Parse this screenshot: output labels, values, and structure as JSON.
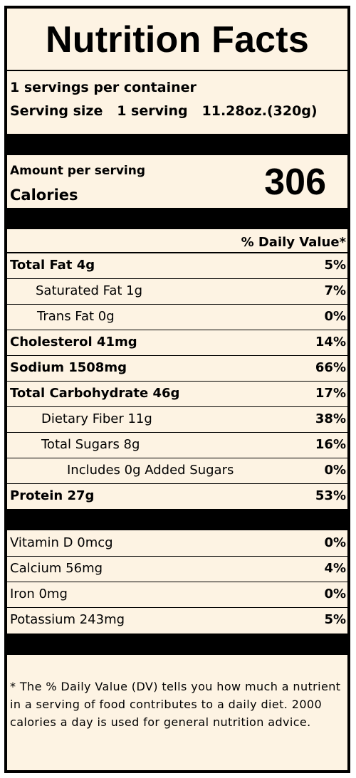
{
  "title": "Nutrition Facts",
  "servings": {
    "per_container": "1 servings per container",
    "serving_size_label": "Serving size",
    "serving_size_value": "1 serving",
    "serving_size_weight": "11.28oz.(320g)"
  },
  "calories": {
    "amount_label": "Amount per serving",
    "label": "Calories",
    "value": "306"
  },
  "dv_header": "% Daily Value*",
  "nutrients": [
    {
      "name": "Total Fat 4g",
      "dv": "5%"
    },
    {
      "name": "Saturated Fat 1g",
      "dv": "7%"
    },
    {
      "name": "Trans Fat 0g",
      "dv": "0%"
    },
    {
      "name": "Cholesterol 41mg",
      "dv": "14%"
    },
    {
      "name": "Sodium 1508mg",
      "dv": "66%"
    },
    {
      "name": "Total Carbohydrate 46g",
      "dv": "17%"
    },
    {
      "name": "Dietary Fiber 11g",
      "dv": "38%"
    },
    {
      "name": "Total Sugars 8g",
      "dv": "16%"
    },
    {
      "name": "Includes 0g Added Sugars",
      "dv": "0%"
    },
    {
      "name": "Protein 27g",
      "dv": "53%"
    }
  ],
  "vitamins": [
    {
      "name": "Vitamin D 0mcg",
      "dv": "0%"
    },
    {
      "name": "Calcium 56mg",
      "dv": "4%"
    },
    {
      "name": "Iron 0mg",
      "dv": "0%"
    },
    {
      "name": "Potassium 243mg",
      "dv": "5%"
    }
  ],
  "footnote": "* The % Daily Value (DV) tells you how much a nutrient in a serving of food contributes to a daily diet. 2000 calories a day is used for general nutrition advice."
}
